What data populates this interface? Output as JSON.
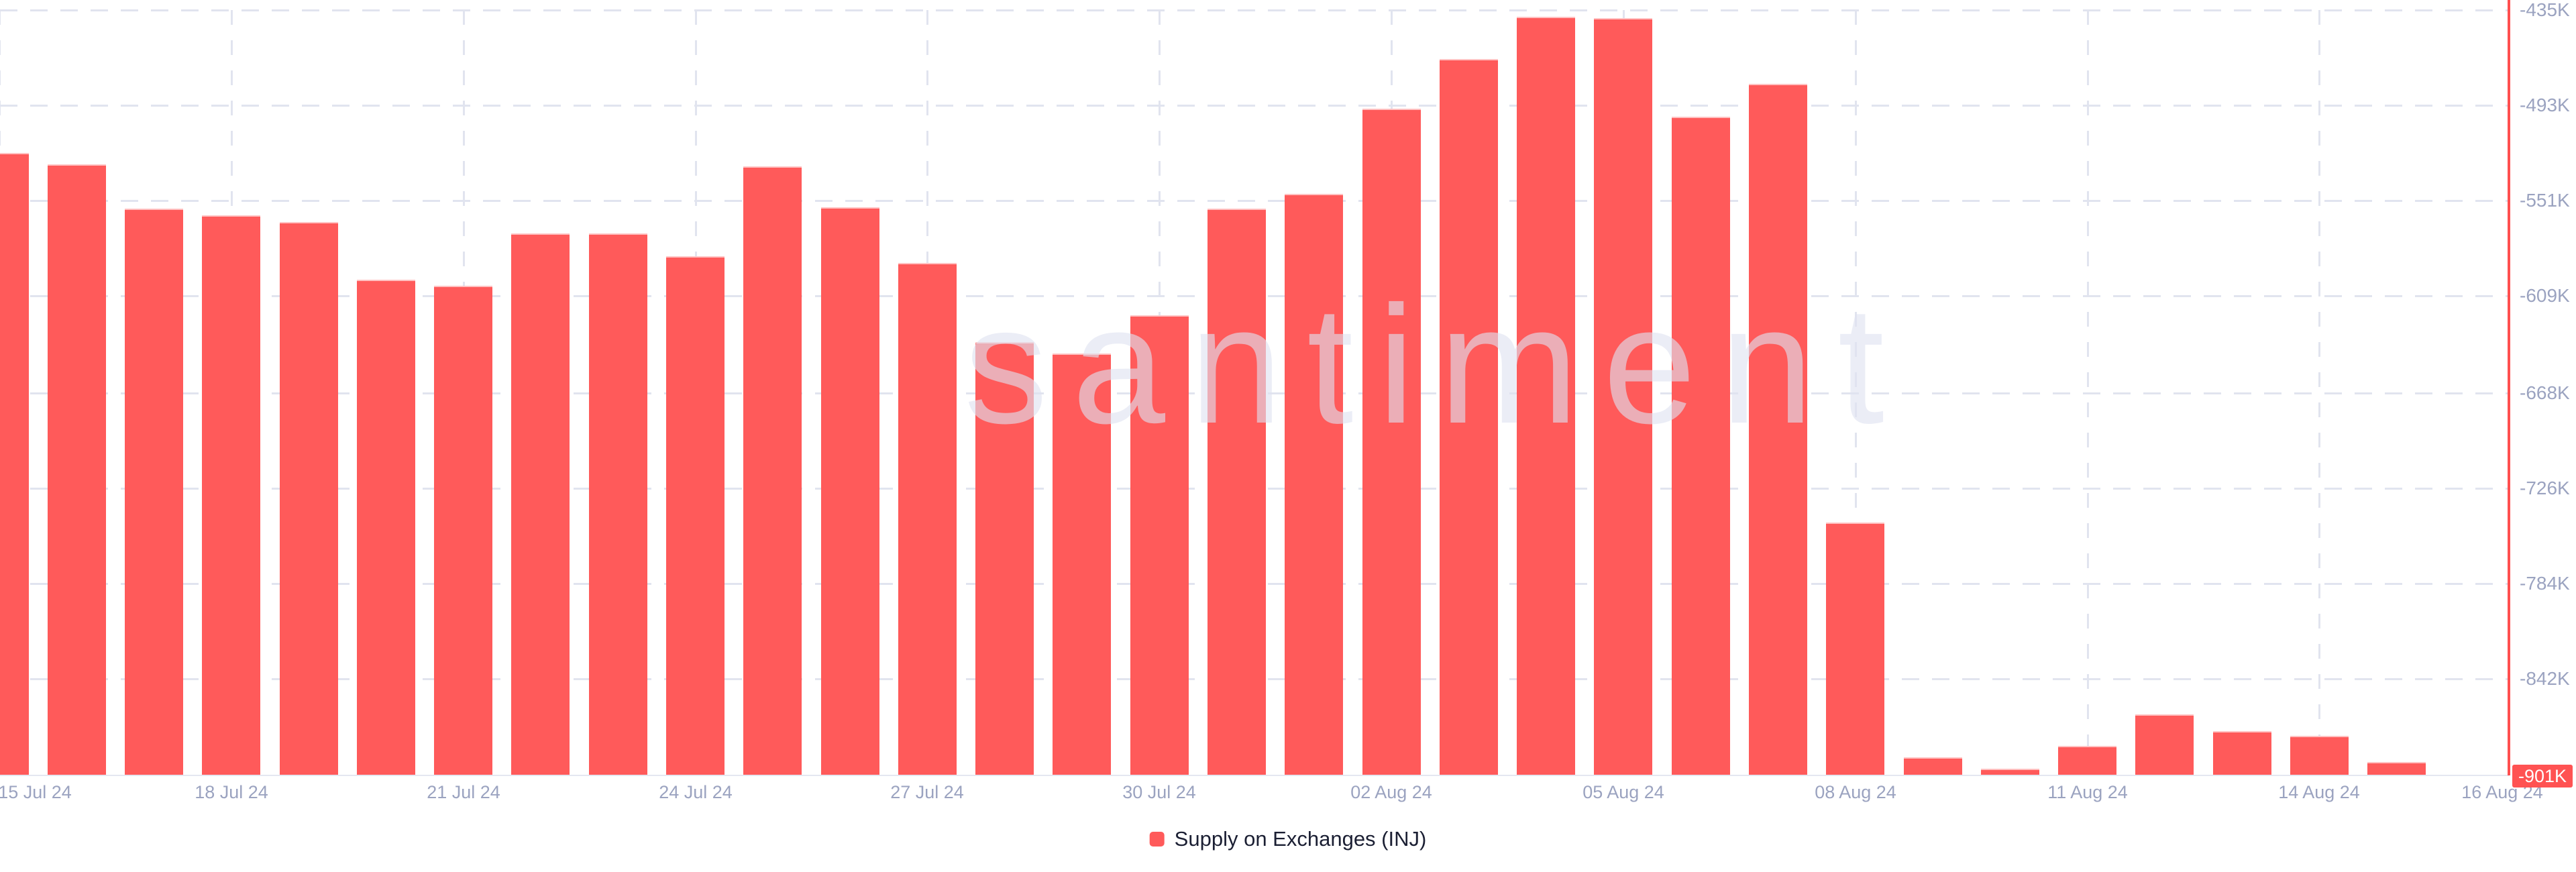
{
  "chart": {
    "watermark": "santiment",
    "legend": {
      "label": "Supply on Exchanges (INJ)",
      "swatch_color": "#ff5a5a"
    },
    "colors": {
      "background": "#ffffff",
      "bar": "#ff5a5a",
      "bar_top_edge": "#ffc2c2",
      "axis_line": "#ff4f4f",
      "grid": "#e1e4ef",
      "axis_text": "#9ba3c0",
      "baseline": "#e4e7f1",
      "badge_bg": "#ff5252",
      "badge_text": "#ffffff",
      "legend_text": "#1b1f33",
      "watermark": "#e4e7f3"
    },
    "y_axis": {
      "tick_labels": [
        "-435K",
        "-493K",
        "-551K",
        "-609K",
        "-668K",
        "-726K",
        "-784K",
        "-842K"
      ],
      "current": {
        "label": "-901K",
        "value": -901
      }
    },
    "x_axis": {
      "tick_labels": [
        "15 Jul 24",
        "18 Jul 24",
        "21 Jul 24",
        "24 Jul 24",
        "27 Jul 24",
        "30 Jul 24",
        "02 Aug 24",
        "05 Aug 24",
        "08 Aug 24",
        "11 Aug 24",
        "14 Aug 24",
        "16 Aug 24"
      ]
    }
  },
  "chart_data": {
    "type": "bar",
    "title": "Supply on Exchanges (INJ)",
    "series_name": "Supply on Exchanges (INJ)",
    "unit": "K (thousand INJ)",
    "x": [
      "2024-07-15",
      "2024-07-16",
      "2024-07-17",
      "2024-07-18",
      "2024-07-19",
      "2024-07-20",
      "2024-07-21",
      "2024-07-22",
      "2024-07-23",
      "2024-07-24",
      "2024-07-25",
      "2024-07-26",
      "2024-07-27",
      "2024-07-28",
      "2024-07-29",
      "2024-07-30",
      "2024-07-31",
      "2024-08-01",
      "2024-08-02",
      "2024-08-03",
      "2024-08-04",
      "2024-08-05",
      "2024-08-06",
      "2024-08-07",
      "2024-08-08",
      "2024-08-09",
      "2024-08-10",
      "2024-08-11",
      "2024-08-12",
      "2024-08-13",
      "2024-08-14",
      "2024-08-15",
      "2024-08-16"
    ],
    "values": [
      -522,
      -529,
      -556,
      -560,
      -564,
      -599,
      -603,
      -571,
      -571,
      -585,
      -530,
      -555,
      -589,
      -637,
      -644,
      -621,
      -556,
      -547,
      -495,
      -465,
      -439,
      -440,
      -500,
      -480,
      -747,
      -890,
      -897,
      -883,
      -864,
      -874,
      -877,
      -893,
      -901
    ],
    "y_ticks": [
      -435,
      -493,
      -551,
      -609,
      -668,
      -726,
      -784,
      -842,
      -901
    ],
    "y_tick_labels": [
      "-435K",
      "-493K",
      "-551K",
      "-609K",
      "-668K",
      "-726K",
      "-784K",
      "-842K",
      "-901K"
    ],
    "x_tick_labels": [
      "15 Jul 24",
      "18 Jul 24",
      "21 Jul 24",
      "24 Jul 24",
      "27 Jul 24",
      "30 Jul 24",
      "02 Aug 24",
      "05 Aug 24",
      "08 Aug 24",
      "11 Aug 24",
      "14 Aug 24",
      "16 Aug 24"
    ],
    "x_tick_indices": [
      0,
      3,
      6,
      9,
      12,
      15,
      18,
      21,
      24,
      27,
      30,
      32
    ],
    "ylim": [
      -901,
      -435
    ],
    "bar_color": "#ff5a5a",
    "grid": "dashed",
    "legend_position": "bottom",
    "last_value_label": "-901K"
  }
}
